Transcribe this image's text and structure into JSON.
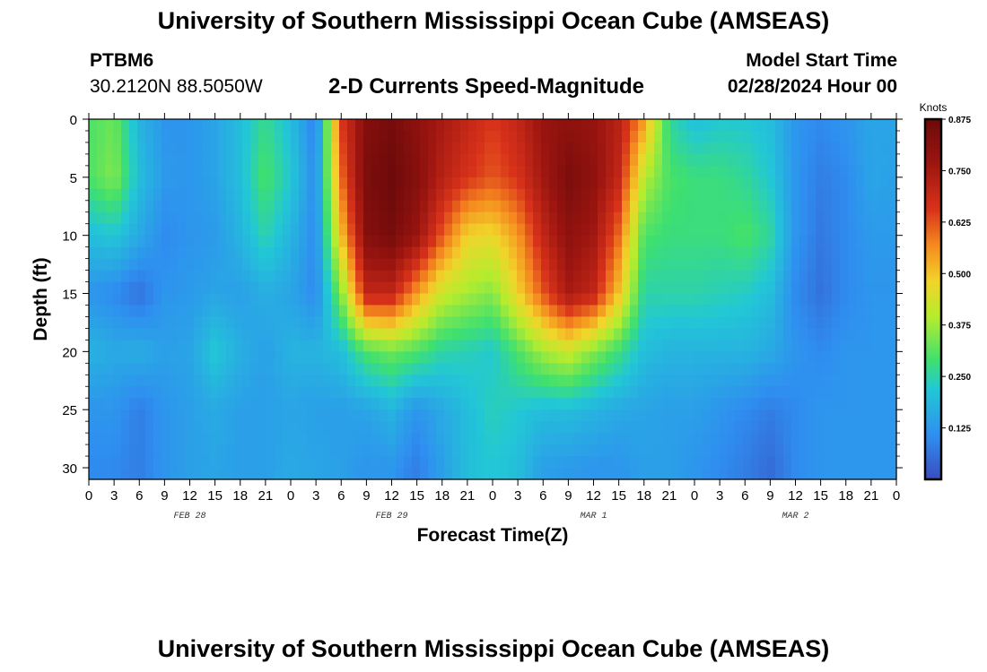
{
  "header": {
    "title": "University of Southern Mississippi Ocean Cube (AMSEAS)",
    "station_id": "PTBM6",
    "station_coords": "30.2120N  88.5050W",
    "plot_title": "2-D Currents Speed-Magnitude",
    "model_start_label": "Model Start Time",
    "model_start_value": "02/28/2024 Hour 00"
  },
  "footer": {
    "title": "University of Southern Mississippi Ocean Cube (AMSEAS)"
  },
  "chart_data": {
    "type": "heatmap",
    "title": "2-D Currents Speed-Magnitude",
    "xlabel": "Forecast Time(Z)",
    "ylabel": "Depth (ft)",
    "x_range_hours": [
      0,
      96
    ],
    "ylim": [
      31,
      0
    ],
    "x_tick_labels": [
      "0",
      "3",
      "6",
      "9",
      "12",
      "15",
      "18",
      "21",
      "0",
      "3",
      "6",
      "9",
      "12",
      "15",
      "18",
      "21",
      "0",
      "3",
      "6",
      "9",
      "12",
      "15",
      "18",
      "21",
      "0",
      "3",
      "6",
      "9",
      "12",
      "15",
      "18",
      "21",
      "0"
    ],
    "date_labels": [
      {
        "text": "FEB 28",
        "hour": 12
      },
      {
        "text": "FEB 29",
        "hour": 36
      },
      {
        "text": "MAR 1",
        "hour": 60
      },
      {
        "text": "MAR 2",
        "hour": 84
      }
    ],
    "y_ticks": [
      0,
      5,
      10,
      15,
      20,
      25,
      30
    ],
    "colorbar": {
      "title": "Knots",
      "range": [
        0,
        0.875
      ],
      "ticks": [
        "0.875",
        "0.750",
        "0.625",
        "0.500",
        "0.375",
        "0.250",
        "0.125"
      ],
      "colors": [
        "#3b4cc0",
        "#2f8ef0",
        "#22c7d6",
        "#3ee070",
        "#b5ec2e",
        "#f2d42a",
        "#f58a1f",
        "#d8321a",
        "#9c1510",
        "#6b0a0a"
      ]
    },
    "speed_grid": {
      "unit": "knots",
      "hours": [
        0,
        3,
        6,
        9,
        12,
        15,
        18,
        21,
        24,
        27,
        30,
        33,
        36,
        39,
        42,
        45,
        48,
        51,
        54,
        57,
        60,
        63,
        66,
        69,
        72,
        75,
        78,
        81,
        84,
        87,
        90,
        93,
        96
      ],
      "depths_ft": [
        0,
        5,
        10,
        15,
        20,
        25,
        30
      ],
      "rows": [
        [
          0.3,
          0.33,
          0.18,
          0.12,
          0.12,
          0.15,
          0.2,
          0.27,
          0.2,
          0.08,
          0.65,
          0.82,
          0.85,
          0.8,
          0.75,
          0.7,
          0.65,
          0.7,
          0.78,
          0.8,
          0.78,
          0.72,
          0.55,
          0.26,
          0.2,
          0.22,
          0.22,
          0.2,
          0.12,
          0.1,
          0.12,
          0.15,
          0.15
        ],
        [
          0.3,
          0.35,
          0.2,
          0.13,
          0.12,
          0.15,
          0.2,
          0.3,
          0.22,
          0.1,
          0.6,
          0.84,
          0.87,
          0.82,
          0.72,
          0.66,
          0.62,
          0.66,
          0.76,
          0.84,
          0.8,
          0.7,
          0.4,
          0.3,
          0.28,
          0.28,
          0.26,
          0.22,
          0.12,
          0.08,
          0.1,
          0.15,
          0.14
        ],
        [
          0.2,
          0.22,
          0.16,
          0.1,
          0.12,
          0.13,
          0.18,
          0.25,
          0.18,
          0.1,
          0.5,
          0.82,
          0.85,
          0.78,
          0.62,
          0.48,
          0.47,
          0.55,
          0.7,
          0.8,
          0.76,
          0.6,
          0.3,
          0.28,
          0.28,
          0.28,
          0.3,
          0.26,
          0.12,
          0.07,
          0.1,
          0.13,
          0.13
        ],
        [
          0.12,
          0.1,
          0.06,
          0.12,
          0.13,
          0.15,
          0.14,
          0.17,
          0.15,
          0.1,
          0.35,
          0.7,
          0.7,
          0.55,
          0.42,
          0.38,
          0.35,
          0.48,
          0.62,
          0.75,
          0.7,
          0.5,
          0.25,
          0.25,
          0.25,
          0.24,
          0.23,
          0.2,
          0.1,
          0.06,
          0.1,
          0.12,
          0.12
        ],
        [
          0.18,
          0.16,
          0.17,
          0.14,
          0.15,
          0.22,
          0.17,
          0.14,
          0.18,
          0.18,
          0.2,
          0.3,
          0.33,
          0.3,
          0.25,
          0.24,
          0.22,
          0.3,
          0.38,
          0.42,
          0.35,
          0.28,
          0.2,
          0.18,
          0.18,
          0.18,
          0.18,
          0.16,
          0.12,
          0.1,
          0.12,
          0.12,
          0.12
        ],
        [
          0.12,
          0.12,
          0.08,
          0.12,
          0.14,
          0.16,
          0.14,
          0.14,
          0.15,
          0.14,
          0.14,
          0.15,
          0.18,
          0.12,
          0.16,
          0.2,
          0.24,
          0.22,
          0.2,
          0.2,
          0.18,
          0.16,
          0.15,
          0.14,
          0.14,
          0.12,
          0.1,
          0.08,
          0.1,
          0.12,
          0.12,
          0.12,
          0.12
        ],
        [
          0.1,
          0.1,
          0.08,
          0.12,
          0.14,
          0.15,
          0.14,
          0.14,
          0.16,
          0.15,
          0.14,
          0.12,
          0.12,
          0.08,
          0.14,
          0.2,
          0.22,
          0.2,
          0.14,
          0.13,
          0.12,
          0.12,
          0.14,
          0.14,
          0.12,
          0.1,
          0.08,
          0.05,
          0.1,
          0.12,
          0.12,
          0.12,
          0.12
        ]
      ]
    }
  }
}
